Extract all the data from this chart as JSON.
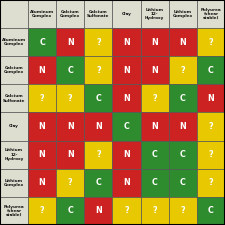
{
  "col_labels": [
    "Aluminum\nComplex",
    "Calcium\nComplex",
    "Calcium\nSulfonate",
    "Clay",
    "Lithium\n12-\nHydroxy",
    "Lithium\nComplex",
    "Polyurea\n(shear\nstable)"
  ],
  "row_labels": [
    "Aluminum\nComplex",
    "Calcium\nComplex",
    "Calcium\nSulfonate",
    "Clay",
    "Lithium\n12-\nHydroxy",
    "Lithium\nComplex",
    "Polyurea\n(shear\nstable)"
  ],
  "grid": [
    [
      "C",
      "N",
      "?",
      "N",
      "N",
      "N",
      "?"
    ],
    [
      "N",
      "C",
      "?",
      "N",
      "N",
      "?",
      "C"
    ],
    [
      "?",
      "?",
      "C",
      "N",
      "?",
      "C",
      "N"
    ],
    [
      "N",
      "N",
      "N",
      "C",
      "N",
      "N",
      "?"
    ],
    [
      "N",
      "N",
      "?",
      "N",
      "C",
      "C",
      "?"
    ],
    [
      "N",
      "?",
      "C",
      "N",
      "C",
      "C",
      "?"
    ],
    [
      "?",
      "C",
      "N",
      "?",
      "?",
      "?",
      "C"
    ]
  ],
  "color_map": {
    "C": "#2e8b2e",
    "N": "#cc2222",
    "?": "#e8c800"
  },
  "header_bg": "#deded0",
  "border_color": "#555555",
  "text_color": "#111111",
  "label_fontsize": 3.0,
  "cell_fontsize": 5.8
}
